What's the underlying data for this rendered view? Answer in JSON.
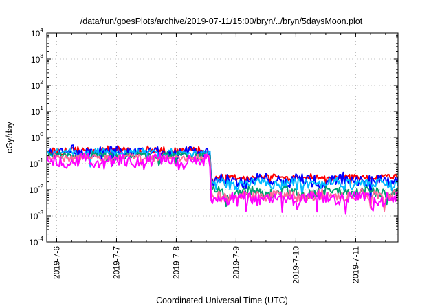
{
  "chart_data": {
    "type": "line",
    "title": "/data/run/goesPlots/archive/2019-07-11/15:00/bryn/../bryn/5daysMoon.plot",
    "xlabel": "Coordinated Universal Time (UTC)",
    "ylabel": "cGy/day",
    "yscale": "log",
    "ylim": [
      0.0001,
      10000
    ],
    "xlim": [
      "2019-07-05T20:00",
      "2019-07-11T17:00"
    ],
    "grid": true,
    "legend": "none",
    "x_ticks": [
      "2019-7-6",
      "2019-7-7",
      "2019-7-8",
      "2019-7-9",
      "2019-7-10",
      "2019-7-11"
    ],
    "y_ticks": [
      {
        "base": "10",
        "exp": "-4"
      },
      {
        "base": "10",
        "exp": "-3"
      },
      {
        "base": "10",
        "exp": "-2"
      },
      {
        "base": "10",
        "exp": "-1"
      },
      {
        "base": "10",
        "exp": "0"
      },
      {
        "base": "10",
        "exp": "1"
      },
      {
        "base": "10",
        "exp": "2"
      },
      {
        "base": "10",
        "exp": "3"
      },
      {
        "base": "10",
        "exp": "4"
      }
    ],
    "series": [
      {
        "color": "#ff0000",
        "segments": [
          {
            "start": "2019-07-05T20:00",
            "end": "2019-07-08T13:30",
            "level": 0.32,
            "noise": 0.14
          },
          {
            "start": "2019-07-08T13:30",
            "end": "2019-07-11T17:00",
            "level": 0.03,
            "noise": 0.1
          }
        ]
      },
      {
        "color": "#0000ff",
        "segments": [
          {
            "start": "2019-07-05T20:00",
            "end": "2019-07-08T13:30",
            "level": 0.3,
            "noise": 0.18
          },
          {
            "start": "2019-07-08T13:30",
            "end": "2019-07-11T17:00",
            "level": 0.022,
            "noise": 0.24
          }
        ]
      },
      {
        "color": "#00bbff",
        "segments": [
          {
            "start": "2019-07-05T20:00",
            "end": "2019-07-08T13:30",
            "level": 0.26,
            "noise": 0.14
          },
          {
            "start": "2019-07-08T13:30",
            "end": "2019-07-11T17:00",
            "level": 0.017,
            "noise": 0.18
          }
        ]
      },
      {
        "color": "#00a070",
        "segments": [
          {
            "start": "2019-07-05T20:00",
            "end": "2019-07-08T13:30",
            "level": 0.2,
            "noise": 0.12
          },
          {
            "start": "2019-07-08T13:30",
            "end": "2019-07-11T17:00",
            "level": 0.008,
            "noise": 0.18
          }
        ]
      },
      {
        "color": "#ff6699",
        "segments": [
          {
            "start": "2019-07-05T20:00",
            "end": "2019-07-08T13:30",
            "level": 0.17,
            "noise": 0.12
          },
          {
            "start": "2019-07-08T13:30",
            "end": "2019-07-11T17:00",
            "level": 0.006,
            "noise": 0.2
          }
        ]
      },
      {
        "color": "#ff00ff",
        "segments": [
          {
            "start": "2019-07-05T20:00",
            "end": "2019-07-08T13:30",
            "level": 0.12,
            "noise": 0.25
          },
          {
            "start": "2019-07-08T13:30",
            "end": "2019-07-11T17:00",
            "level": 0.0047,
            "noise": 0.22
          }
        ]
      }
    ]
  }
}
